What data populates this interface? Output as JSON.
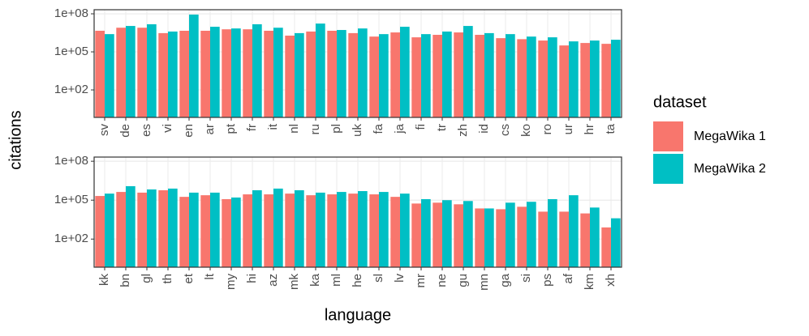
{
  "chart_data": [
    {
      "type": "bar",
      "log_scale": true,
      "grid": true,
      "y_label": "citations",
      "legend_title": "dataset",
      "legend_position": "right",
      "categories": [
        "sv",
        "de",
        "es",
        "vi",
        "en",
        "ar",
        "pt",
        "fr",
        "it",
        "nl",
        "ru",
        "pl",
        "uk",
        "fa",
        "ja",
        "fi",
        "tr",
        "zh",
        "id",
        "cs",
        "ko",
        "ro",
        "ur",
        "hr",
        "ta"
      ],
      "series": [
        {
          "name": "MegaWika 1",
          "color": "#F8766D",
          "values": [
            4600000,
            8000000,
            8000000,
            3000000,
            4600000,
            4600000,
            6000000,
            6000000,
            4600000,
            1900000,
            4000000,
            4600000,
            3000000,
            1600000,
            3400000,
            1400000,
            2200000,
            3400000,
            2200000,
            1200000,
            1000000,
            780000,
            320000,
            500000,
            430000
          ]
        },
        {
          "name": "MegaWika 2",
          "color": "#00BFC4",
          "values": [
            2500000,
            11000000,
            15000000,
            4000000,
            87000000,
            9500000,
            7000000,
            15000000,
            8000000,
            3000000,
            17000000,
            5300000,
            7000000,
            2500000,
            9500000,
            2500000,
            4000000,
            11000000,
            3000000,
            2500000,
            1600000,
            1400000,
            670000,
            780000,
            900000
          ]
        }
      ],
      "ylim": [
        0.68,
        210000000
      ],
      "yticks": [
        {
          "value": 100,
          "label": "1e+02"
        },
        {
          "value": 100000,
          "label": "1e+05"
        },
        {
          "value": 100000000,
          "label": "1e+08"
        }
      ]
    },
    {
      "type": "bar",
      "log_scale": true,
      "grid": true,
      "x_label": "language",
      "categories": [
        "kk",
        "bn",
        "gl",
        "th",
        "et",
        "lt",
        "my",
        "hi",
        "az",
        "mk",
        "ka",
        "ml",
        "he",
        "sl",
        "lv",
        "mr",
        "ne",
        "gu",
        "mn",
        "ga",
        "si",
        "ps",
        "af",
        "km",
        "xh"
      ],
      "series": [
        {
          "name": "MegaWika 1",
          "color": "#F8766D",
          "values": [
            210000,
            430000,
            380000,
            580000,
            180000,
            240000,
            120000,
            280000,
            280000,
            320000,
            240000,
            280000,
            320000,
            280000,
            180000,
            55000,
            64000,
            48000,
            23000,
            20000,
            31000,
            13000,
            13000,
            9500,
            790
          ]
        },
        {
          "name": "MegaWika 2",
          "color": "#00BFC4",
          "values": [
            320000,
            1200000,
            670000,
            780000,
            380000,
            380000,
            160000,
            580000,
            780000,
            580000,
            380000,
            430000,
            500000,
            430000,
            320000,
            120000,
            100000,
            86000,
            23000,
            64000,
            75000,
            120000,
            240000,
            27000,
            4000
          ]
        }
      ],
      "ylim": [
        0.68,
        210000000
      ],
      "yticks": [
        {
          "value": 100,
          "label": "1e+02"
        },
        {
          "value": 100000,
          "label": "1e+05"
        },
        {
          "value": 100000000,
          "label": "1e+08"
        }
      ]
    }
  ]
}
